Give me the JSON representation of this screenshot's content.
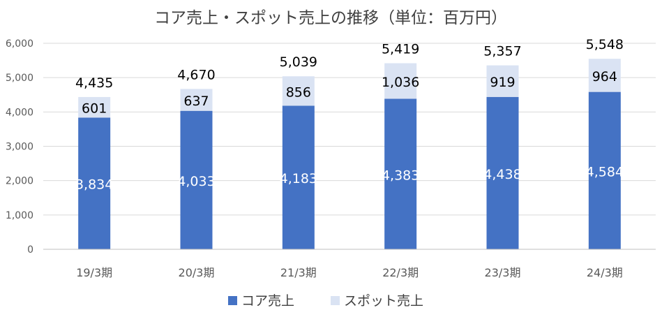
{
  "chart_data": {
    "type": "bar",
    "stacked": true,
    "title": "コア売上・スポット売上の推移（単位：百万円）",
    "categories": [
      "19/3期",
      "20/3期",
      "21/3期",
      "22/3期",
      "23/3期",
      "24/3期"
    ],
    "series": [
      {
        "name": "コア売上",
        "values": [
          3834,
          4033,
          4183,
          4383,
          4438,
          4584
        ],
        "labels": [
          "3,834",
          "4,033",
          "4,183",
          "4,383",
          "4,438",
          "4,584"
        ],
        "color": "#4472C4"
      },
      {
        "name": "スポット売上",
        "values": [
          601,
          637,
          856,
          1036,
          919,
          964
        ],
        "labels": [
          "601",
          "637",
          "856",
          "1,036",
          "919",
          "964"
        ],
        "color": "#DAE3F3"
      }
    ],
    "totals": [
      4435,
      4670,
      5039,
      5419,
      5357,
      5548
    ],
    "total_labels": [
      "4,435",
      "4,670",
      "5,039",
      "5,419",
      "5,357",
      "5,548"
    ],
    "yticks": [
      0,
      1000,
      2000,
      3000,
      4000,
      5000,
      6000
    ],
    "ytick_labels": [
      "0",
      "1,000",
      "2,000",
      "3,000",
      "4,000",
      "5,000",
      "6,000"
    ],
    "ylim": [
      0,
      6000
    ],
    "grid": true,
    "legend_position": "bottom"
  }
}
